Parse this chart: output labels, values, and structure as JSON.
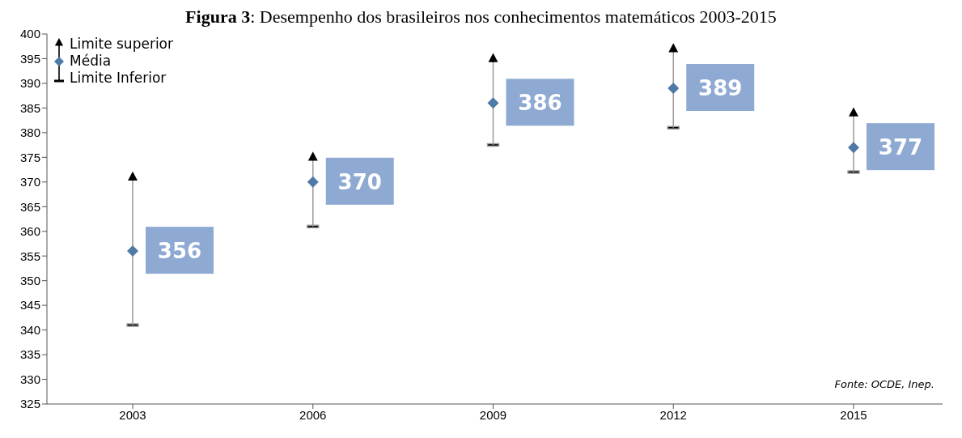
{
  "chart_data": {
    "type": "scatter",
    "title": "Figura 3: Desempenho dos brasileiros nos conhecimentos matemáticos 2003-2015",
    "categories": [
      "2003",
      "2006",
      "2009",
      "2012",
      "2015"
    ],
    "series": [
      {
        "name": "Limite superior",
        "color": "#000000",
        "marker": "triangle",
        "values": [
          371,
          375,
          395,
          397,
          384
        ]
      },
      {
        "name": "Média",
        "color": "#4f7aa8",
        "marker": "diamond",
        "values": [
          356,
          370,
          386,
          389,
          377
        ],
        "errors": [
          [
            341,
            371
          ],
          [
            361,
            375
          ],
          [
            377.5,
            395
          ],
          [
            381,
            397
          ],
          [
            372,
            384
          ]
        ],
        "value_labels": [
          "356",
          "370",
          "386",
          "389",
          "377"
        ]
      }
    ],
    "legend": "top left",
    "annotations": [
      "Limite Inferior",
      "Fonte: OCDE, Inep."
    ],
    "ylim": [
      325,
      400
    ],
    "yticks": [
      325,
      330,
      335,
      340,
      345,
      350,
      355,
      360,
      365,
      370,
      375,
      380,
      385,
      390,
      395,
      400
    ],
    "grid": false
  }
}
